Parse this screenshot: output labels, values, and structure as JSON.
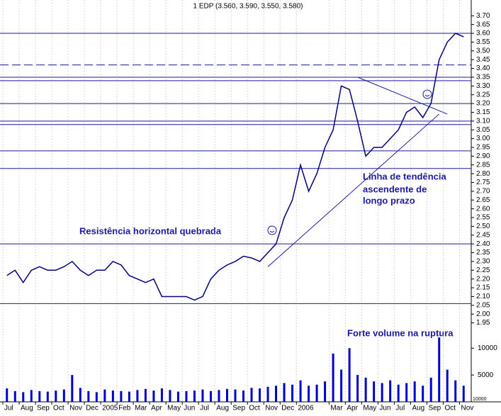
{
  "chart_data": [
    {
      "type": "line",
      "title": "1 EDP (3.560, 3.590, 3.550, 3.580)",
      "categories": [
        "Jul",
        null,
        "Aug",
        null,
        "Sep",
        null,
        "Oct",
        null,
        "Nov",
        null,
        "Dec",
        null,
        "2005",
        null,
        "Feb",
        null,
        "Mar",
        null,
        "Apr",
        null,
        "May",
        null,
        "Jun",
        null,
        "Jul",
        null,
        "Aug",
        null,
        "Sep",
        null,
        "Oct",
        null,
        "Nov",
        null,
        "Dec",
        null,
        "2006",
        null,
        null,
        null,
        "Mar",
        null,
        "Apr",
        null,
        "May",
        null,
        "Jun",
        null,
        "Jul",
        null,
        "Aug",
        null,
        "Sep",
        null,
        "Oct",
        null,
        "Nov"
      ],
      "series": [
        {
          "name": "EDP",
          "color": "#000080",
          "values": [
            2.22,
            2.25,
            2.18,
            2.25,
            2.27,
            2.25,
            2.25,
            2.27,
            2.3,
            2.25,
            2.22,
            2.25,
            2.25,
            2.3,
            2.28,
            2.22,
            2.2,
            2.18,
            2.2,
            2.1,
            2.1,
            2.1,
            2.1,
            2.08,
            2.1,
            2.2,
            2.25,
            2.28,
            2.3,
            2.33,
            2.32,
            2.3,
            2.35,
            2.4,
            2.55,
            2.65,
            2.85,
            2.7,
            2.8,
            2.95,
            3.05,
            3.3,
            3.28,
            3.1,
            2.9,
            2.95,
            2.95,
            3.0,
            3.05,
            3.15,
            3.18,
            3.12,
            3.2,
            3.45,
            3.55,
            3.6,
            3.58
          ]
        }
      ],
      "ylim": [
        1.5,
        3.79
      ],
      "yticks": [
        {
          "value": 3.7,
          "label": "3.70"
        },
        3.65,
        {
          "value": 3.6,
          "label": "3.60"
        },
        3.55,
        {
          "value": 3.5,
          "label": "3.50"
        },
        3.45,
        {
          "value": 3.4,
          "label": "3.40"
        },
        3.35,
        {
          "value": 3.3,
          "label": "3.30"
        },
        3.25,
        {
          "value": 3.2,
          "label": "3.20"
        },
        3.15,
        {
          "value": 3.1,
          "label": "3.10"
        },
        3.05,
        {
          "value": 3.0,
          "label": "3.00"
        },
        2.95,
        {
          "value": 2.9,
          "label": "2.90"
        },
        2.85,
        {
          "value": 2.8,
          "label": "2.80"
        },
        2.75,
        {
          "value": 2.7,
          "label": "2.70"
        },
        2.65,
        {
          "value": 2.6,
          "label": "2.60"
        },
        2.55,
        {
          "value": 2.5,
          "label": "2.50"
        },
        2.45,
        {
          "value": 2.4,
          "label": "2.40"
        },
        2.35,
        {
          "value": 2.3,
          "label": "2.30"
        },
        2.25,
        {
          "value": 2.2,
          "label": "2.20"
        },
        2.15,
        {
          "value": 2.1,
          "label": "2.10"
        },
        2.05,
        {
          "value": 2.0,
          "label": "2.00"
        },
        1.95
      ],
      "reference_lines": [
        3.6,
        3.35,
        3.33,
        3.2,
        3.1,
        3.08,
        2.93,
        2.83,
        2.4,
        2.06
      ],
      "dashed_lines": [
        3.42
      ],
      "trend_lines": [
        [
          [
            32,
            2.27
          ],
          [
            53,
            3.14
          ]
        ],
        [
          [
            43,
            3.35
          ],
          [
            54,
            3.14
          ]
        ]
      ],
      "annotations": [
        "Resistência horizontal quebrada",
        "Linha de tendência",
        "ascendente de",
        "longo prazo",
        "Forte volume na ruptura"
      ],
      "grid": true
    },
    {
      "type": "bar",
      "scale_note": "10000",
      "color": "#0000cc",
      "values": [
        2500,
        2000,
        1800,
        2200,
        2000,
        1900,
        2100,
        2300,
        5000,
        2600,
        2000,
        1800,
        2300,
        2100,
        2000,
        1900,
        2200,
        2400,
        2100,
        2500,
        2200,
        1900,
        2000,
        2100,
        2300,
        2000,
        2200,
        2400,
        2300,
        2100,
        2600,
        2500,
        2800,
        3000,
        3500,
        3200,
        4000,
        3000,
        3200,
        3800,
        9000,
        6000,
        10000,
        5000,
        4500,
        3800,
        3500,
        4000,
        3200,
        3500,
        3800,
        3000,
        4500,
        12000,
        6000,
        4000,
        3000
      ],
      "ylim": [
        0,
        14000
      ],
      "yticks": [
        5000,
        10000
      ]
    }
  ]
}
